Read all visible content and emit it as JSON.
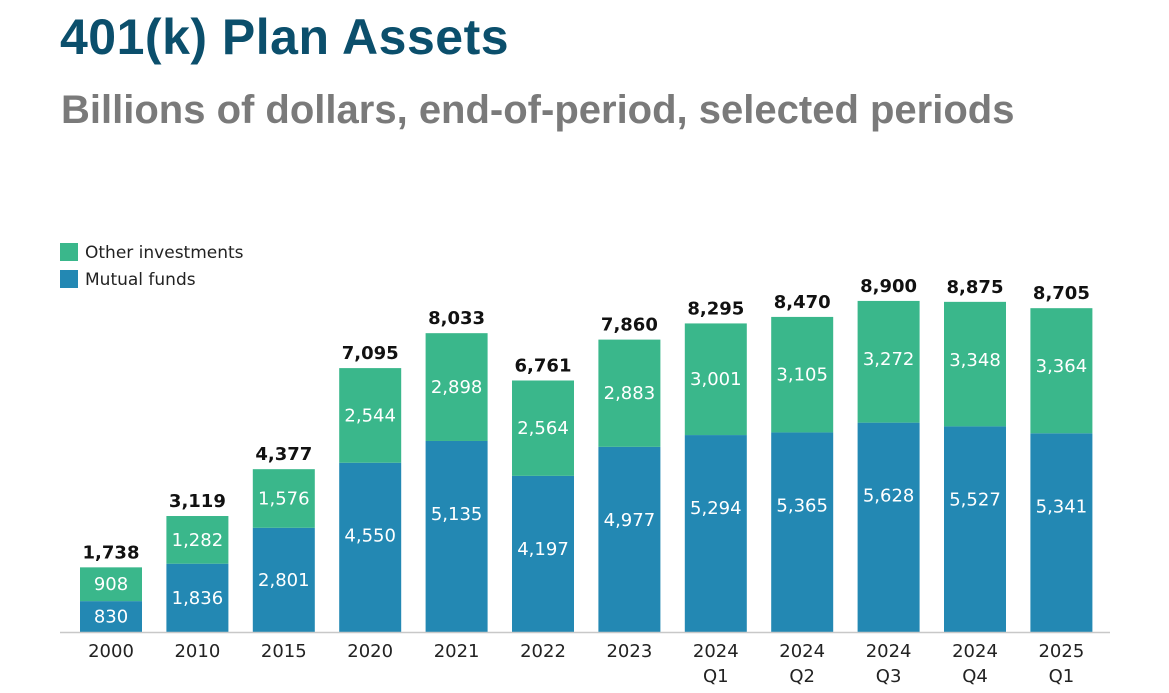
{
  "header": {
    "title": "401(k) Plan Assets",
    "subtitle": "Billions of dollars, end-of-period, selected periods"
  },
  "colors": {
    "title": "#0b4f6c",
    "subtitle": "#7a7a7a",
    "other_investments": "#3ab78b",
    "mutual_funds": "#2388b3"
  },
  "chart_data": {
    "type": "bar",
    "stacked": true,
    "categories": [
      [
        "2000"
      ],
      [
        "2010"
      ],
      [
        "2015"
      ],
      [
        "2020"
      ],
      [
        "2021"
      ],
      [
        "2022"
      ],
      [
        "2023"
      ],
      [
        "2024",
        "Q1"
      ],
      [
        "2024",
        "Q2"
      ],
      [
        "2024",
        "Q3"
      ],
      [
        "2024",
        "Q4"
      ],
      [
        "2025",
        "Q1"
      ]
    ],
    "series": [
      {
        "name": "Mutual funds",
        "color": "#2388b3",
        "values": [
          830,
          1836,
          2801,
          4550,
          5135,
          4197,
          4977,
          5294,
          5365,
          5628,
          5527,
          5341
        ],
        "labels": [
          "830",
          "1,836",
          "2,801",
          "4,550",
          "5,135",
          "4,197",
          "4,977",
          "5,294",
          "5,365",
          "5,628",
          "5,527",
          "5,341"
        ]
      },
      {
        "name": "Other investments",
        "color": "#3ab78b",
        "values": [
          908,
          1282,
          1576,
          2544,
          2898,
          2564,
          2883,
          3001,
          3105,
          3272,
          3348,
          3364
        ],
        "labels": [
          "908",
          "1,282",
          "1,576",
          "2,544",
          "2,898",
          "2,564",
          "2,883",
          "3,001",
          "3,105",
          "3,272",
          "3,348",
          "3,364"
        ]
      }
    ],
    "totals": [
      1738,
      3119,
      4377,
      7095,
      8033,
      6761,
      7860,
      8295,
      8470,
      8900,
      8875,
      8705
    ],
    "total_labels": [
      "1,738",
      "3,119",
      "4,377",
      "7,095",
      "8,033",
      "6,761",
      "7,860",
      "8,295",
      "8,470",
      "8,900",
      "8,875",
      "8,705"
    ],
    "legend": [
      {
        "label": "Other investments",
        "color": "#3ab78b"
      },
      {
        "label": "Mutual funds",
        "color": "#2388b3"
      }
    ],
    "legend_position": "top-left",
    "ylim": [
      0,
      9000
    ],
    "grid": false
  }
}
